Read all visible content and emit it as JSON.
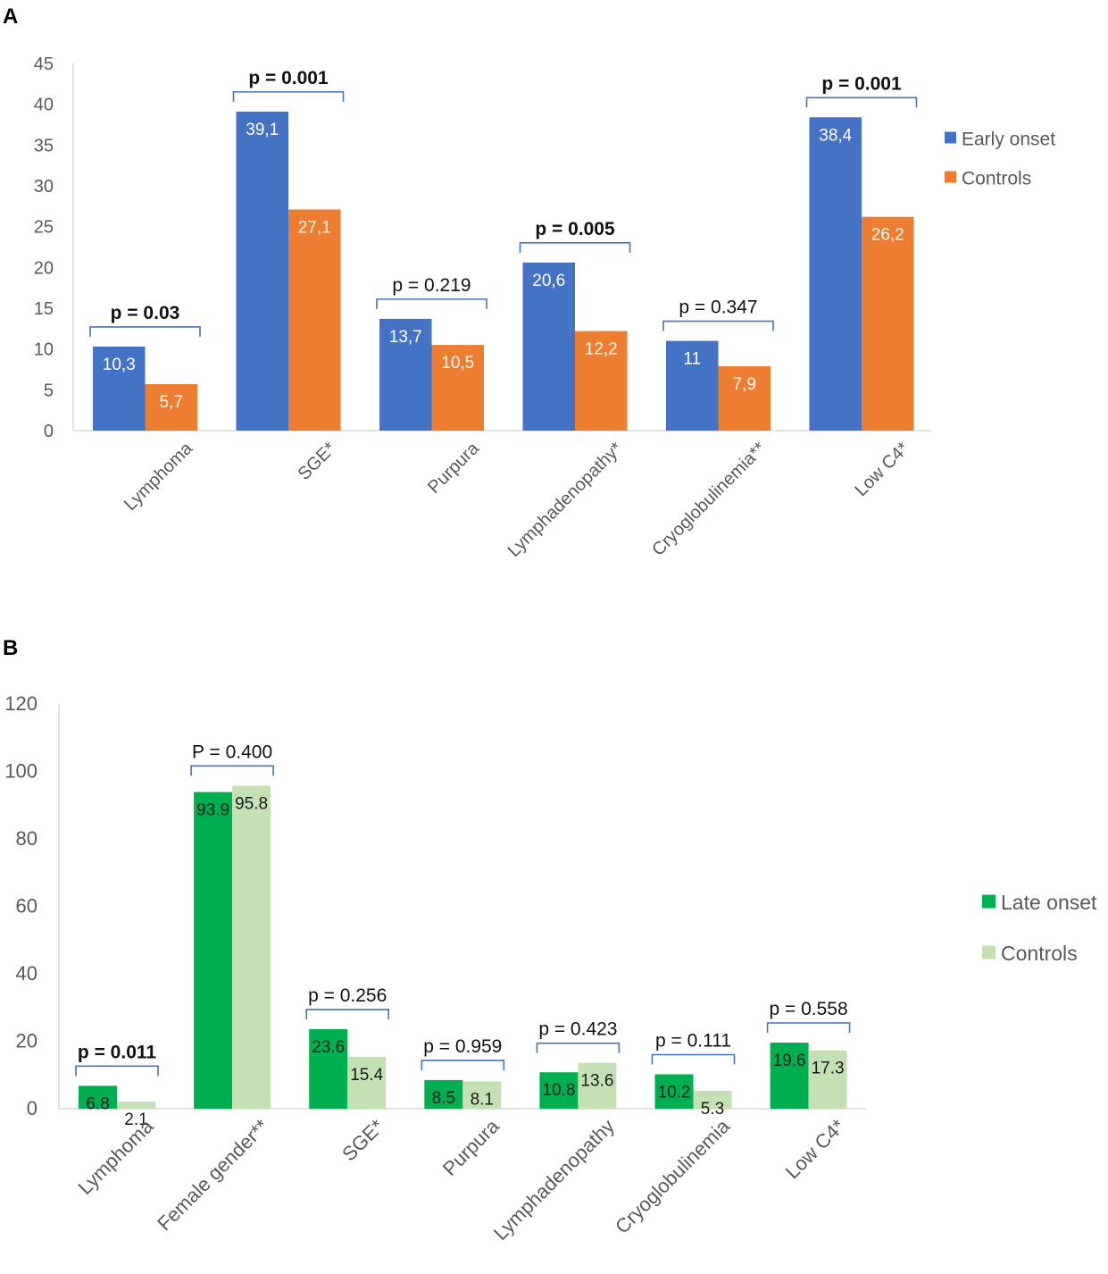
{
  "panels": {
    "a": {
      "label": "A"
    },
    "b": {
      "label": "B"
    }
  },
  "colors": {
    "early": "#4472C4",
    "controls_a": "#ED7D31",
    "late": "#00B050",
    "controls_b": "#C5E0B4",
    "bracket": "#4472C4",
    "axis": "#D9D9D9",
    "text": "#595959"
  },
  "chart_data": [
    {
      "type": "bar",
      "panel": "A",
      "categories": [
        "Lymphoma",
        "SGE*",
        "Purpura",
        "Lymphadenopathy*",
        "Cryoglobulinemia**",
        "Low C4*"
      ],
      "series": [
        {
          "name": "Early onset",
          "values": [
            10.3,
            39.1,
            13.7,
            20.6,
            11,
            38.4
          ],
          "labels": [
            "10,3",
            "39,1",
            "13,7",
            "20,6",
            "11",
            "38,4"
          ]
        },
        {
          "name": "Controls",
          "values": [
            5.7,
            27.1,
            10.5,
            12.2,
            7.9,
            26.2
          ],
          "labels": [
            "5,7",
            "27,1",
            "10,5",
            "12,2",
            "7,9",
            "26,2"
          ]
        }
      ],
      "p_values": [
        {
          "text": "p = 0.03",
          "bold": true
        },
        {
          "text": "p = 0.001",
          "bold": true
        },
        {
          "text": "p = 0.219",
          "bold": false
        },
        {
          "text": "p = 0.005",
          "bold": true
        },
        {
          "text": "p = 0.347",
          "bold": false
        },
        {
          "text": "p = 0.001",
          "bold": true
        }
      ],
      "yticks": [
        0,
        5,
        10,
        15,
        20,
        25,
        30,
        35,
        40,
        45
      ],
      "ylim": [
        0,
        45
      ],
      "legend": "right"
    },
    {
      "type": "bar",
      "panel": "B",
      "categories": [
        "Lymphoma",
        "Female gender**",
        "SGE*",
        "Purpura",
        "Lymphadenopathy",
        "Cryoglobulinemia",
        "Low C4*"
      ],
      "series": [
        {
          "name": "Late onset",
          "values": [
            6.8,
            93.9,
            23.6,
            8.5,
            10.8,
            10.2,
            19.6
          ],
          "labels": [
            "6.8",
            "93.9",
            "23.6",
            "8.5",
            "10.8",
            "10.2",
            "19.6"
          ]
        },
        {
          "name": "Controls",
          "values": [
            2.1,
            95.8,
            15.4,
            8.1,
            13.6,
            5.3,
            17.3
          ],
          "labels": [
            "2.1",
            "95.8",
            "15.4",
            "8.1",
            "13.6",
            "5.3",
            "17.3"
          ]
        }
      ],
      "p_values": [
        {
          "text": "p = 0.011",
          "bold": true
        },
        {
          "text": "P = 0.400",
          "bold": false
        },
        {
          "text": "p = 0.256",
          "bold": false
        },
        {
          "text": "p = 0.959",
          "bold": false
        },
        {
          "text": "p = 0.423",
          "bold": false
        },
        {
          "text": "p = 0.111",
          "bold": false
        },
        {
          "text": "p = 0.558",
          "bold": false
        }
      ],
      "yticks": [
        0,
        20,
        40,
        60,
        80,
        100,
        120
      ],
      "ylim": [
        0,
        120
      ],
      "legend": "right"
    }
  ]
}
